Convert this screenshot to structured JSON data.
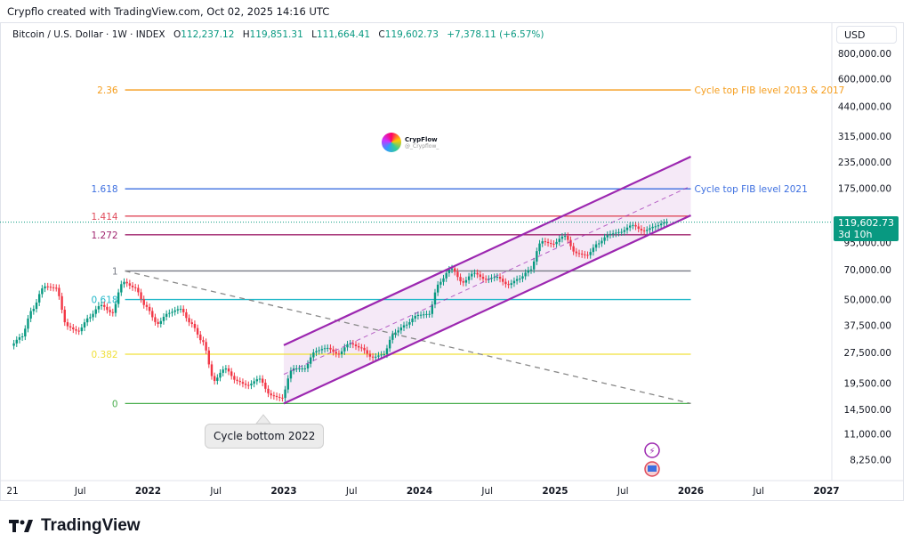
{
  "credit": "Crypflo created with TradingView.com, Oct 02, 2025 14:16 UTC",
  "legend": {
    "symbol": "Bitcoin / U.S. Dollar · 1W · INDEX",
    "open_label": "O",
    "open": "112,237.12",
    "high_label": "H",
    "high": "119,851.31",
    "low_label": "L",
    "low": "111,664.41",
    "close_label": "C",
    "close": "119,602.73",
    "change": "+7,378.11 (+6.57%)"
  },
  "currency_button": "USD",
  "price_tag": {
    "price": "119,602.73",
    "countdown": "3d 10h"
  },
  "watermark": {
    "name": "CrypFlow",
    "handle": "@_Crypflow_"
  },
  "callout": "Cycle bottom 2022",
  "brand": "TradingView",
  "colors": {
    "up": "#089981",
    "down": "#f23645",
    "channel": "#9c27b0"
  },
  "chart_data": {
    "type": "candlestick",
    "title": "Bitcoin / U.S. Dollar · 1W · INDEX",
    "yscale": "log",
    "ylim": [
      7000,
      1000000
    ],
    "xlim": [
      2020.95,
      2027.15
    ],
    "y_ticks": [
      "800,000.00",
      "600,000.00",
      "440,000.00",
      "315,000.00",
      "235,000.00",
      "175,000.00",
      "95,000.00",
      "70,000.00",
      "50,000.00",
      "37,500.00",
      "27,500.00",
      "19,500.00",
      "14,500.00",
      "11,000.00",
      "8,250.00"
    ],
    "y_tick_values": [
      800000,
      600000,
      440000,
      315000,
      235000,
      175000,
      95000,
      70000,
      50000,
      37500,
      27500,
      19500,
      14500,
      11000,
      8250
    ],
    "x_ticks": [
      {
        "label": "21",
        "t": 2021.0
      },
      {
        "label": "Jul",
        "t": 2021.5
      },
      {
        "label": "2022",
        "t": 2022.0
      },
      {
        "label": "Jul",
        "t": 2022.5
      },
      {
        "label": "2023",
        "t": 2023.0
      },
      {
        "label": "Jul",
        "t": 2023.5
      },
      {
        "label": "2024",
        "t": 2024.0
      },
      {
        "label": "Jul",
        "t": 2024.5
      },
      {
        "label": "2025",
        "t": 2025.0
      },
      {
        "label": "Jul",
        "t": 2025.5
      },
      {
        "label": "2026",
        "t": 2026.0
      },
      {
        "label": "Jul",
        "t": 2026.5
      },
      {
        "label": "2027",
        "t": 2027.0
      }
    ],
    "monthly_closes_start": 2021.0,
    "monthly_closes": [
      33000,
      45000,
      58000,
      57000,
      37000,
      35000,
      41000,
      47000,
      43000,
      61000,
      57000,
      46000,
      38000,
      43000,
      45000,
      38000,
      31000,
      20000,
      23000,
      20000,
      19000,
      20500,
      17000,
      16500,
      23000,
      23000,
      28000,
      29000,
      27000,
      30500,
      29000,
      26000,
      27000,
      34500,
      37700,
      42000,
      42500,
      61000,
      71000,
      60500,
      67500,
      62700,
      64600,
      59000,
      63300,
      70200,
      96400,
      93400,
      102400,
      84300,
      82500,
      94200,
      104600,
      107100,
      115700,
      108200,
      114000,
      119602
    ],
    "fib_levels": [
      {
        "label": "2.36",
        "price": 530000,
        "color": "#f59c1a",
        "note": "Cycle top FIB level 2013 & 2017"
      },
      {
        "label": "1.618",
        "price": 174000,
        "color": "#3d6fe0",
        "note": "Cycle top FIB level 2021"
      },
      {
        "label": "1.414",
        "price": 128000,
        "color": "#e04a5a"
      },
      {
        "label": "1.272",
        "price": 103700,
        "color": "#a0246e"
      },
      {
        "label": "1",
        "price": 69000,
        "color": "#787b86"
      },
      {
        "label": "0.618",
        "price": 50000,
        "color": "#22b8c9"
      },
      {
        "label": "0.382",
        "price": 27000,
        "color": "#f0e03a"
      },
      {
        "label": "0",
        "price": 15500,
        "color": "#4caf50"
      }
    ],
    "fib_range": [
      2021.83,
      2026.0
    ],
    "channel": {
      "start": 2023.0,
      "end": 2026.0,
      "upper": [
        29900,
        250000
      ],
      "lower": [
        15500,
        129000
      ]
    },
    "trendline": {
      "start": [
        2021.83,
        69000
      ],
      "end": [
        2026.0,
        15500
      ]
    },
    "last_price": 119602.73
  }
}
